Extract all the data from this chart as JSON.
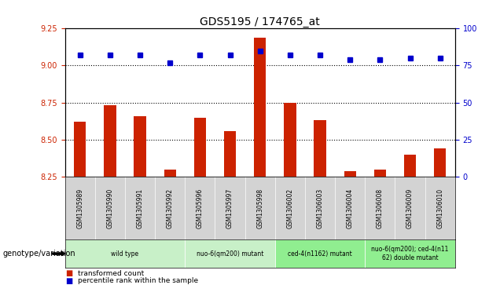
{
  "title": "GDS5195 / 174765_at",
  "samples": [
    "GSM1305989",
    "GSM1305990",
    "GSM1305991",
    "GSM1305992",
    "GSM1305996",
    "GSM1305997",
    "GSM1305998",
    "GSM1306002",
    "GSM1306003",
    "GSM1306004",
    "GSM1306008",
    "GSM1306009",
    "GSM1306010"
  ],
  "red_values": [
    8.62,
    8.73,
    8.66,
    8.3,
    8.65,
    8.56,
    9.19,
    8.75,
    8.63,
    8.29,
    8.3,
    8.4,
    8.44
  ],
  "blue_values": [
    9.07,
    9.07,
    9.07,
    9.02,
    9.07,
    9.07,
    9.1,
    9.07,
    9.07,
    9.04,
    9.04,
    9.05,
    9.05
  ],
  "ylim_left": [
    8.25,
    9.25
  ],
  "ylim_right": [
    0,
    100
  ],
  "yticks_left": [
    8.25,
    8.5,
    8.75,
    9.0,
    9.25
  ],
  "yticks_right": [
    0,
    25,
    50,
    75,
    100
  ],
  "hlines": [
    9.0,
    8.75,
    8.5
  ],
  "groups": [
    {
      "label": "wild type",
      "start": 0,
      "end": 4,
      "color": "#c8f0c8"
    },
    {
      "label": "nuo-6(qm200) mutant",
      "start": 4,
      "end": 7,
      "color": "#c8f0c8"
    },
    {
      "label": "ced-4(n1162) mutant",
      "start": 7,
      "end": 10,
      "color": "#90ee90"
    },
    {
      "label": "nuo-6(qm200); ced-4(n11\n62) double mutant",
      "start": 10,
      "end": 13,
      "color": "#90ee90"
    }
  ],
  "bar_color": "#cc2200",
  "dot_color": "#0000cc",
  "bg_color": "#d3d3d3",
  "plot_bg": "#ffffff",
  "genotype_label": "genotype/variation",
  "legend_red": "transformed count",
  "legend_blue": "percentile rank within the sample",
  "bar_width": 0.4,
  "tick_color_left": "#cc2200",
  "tick_color_right": "#0000cc",
  "title_color": "#000000"
}
